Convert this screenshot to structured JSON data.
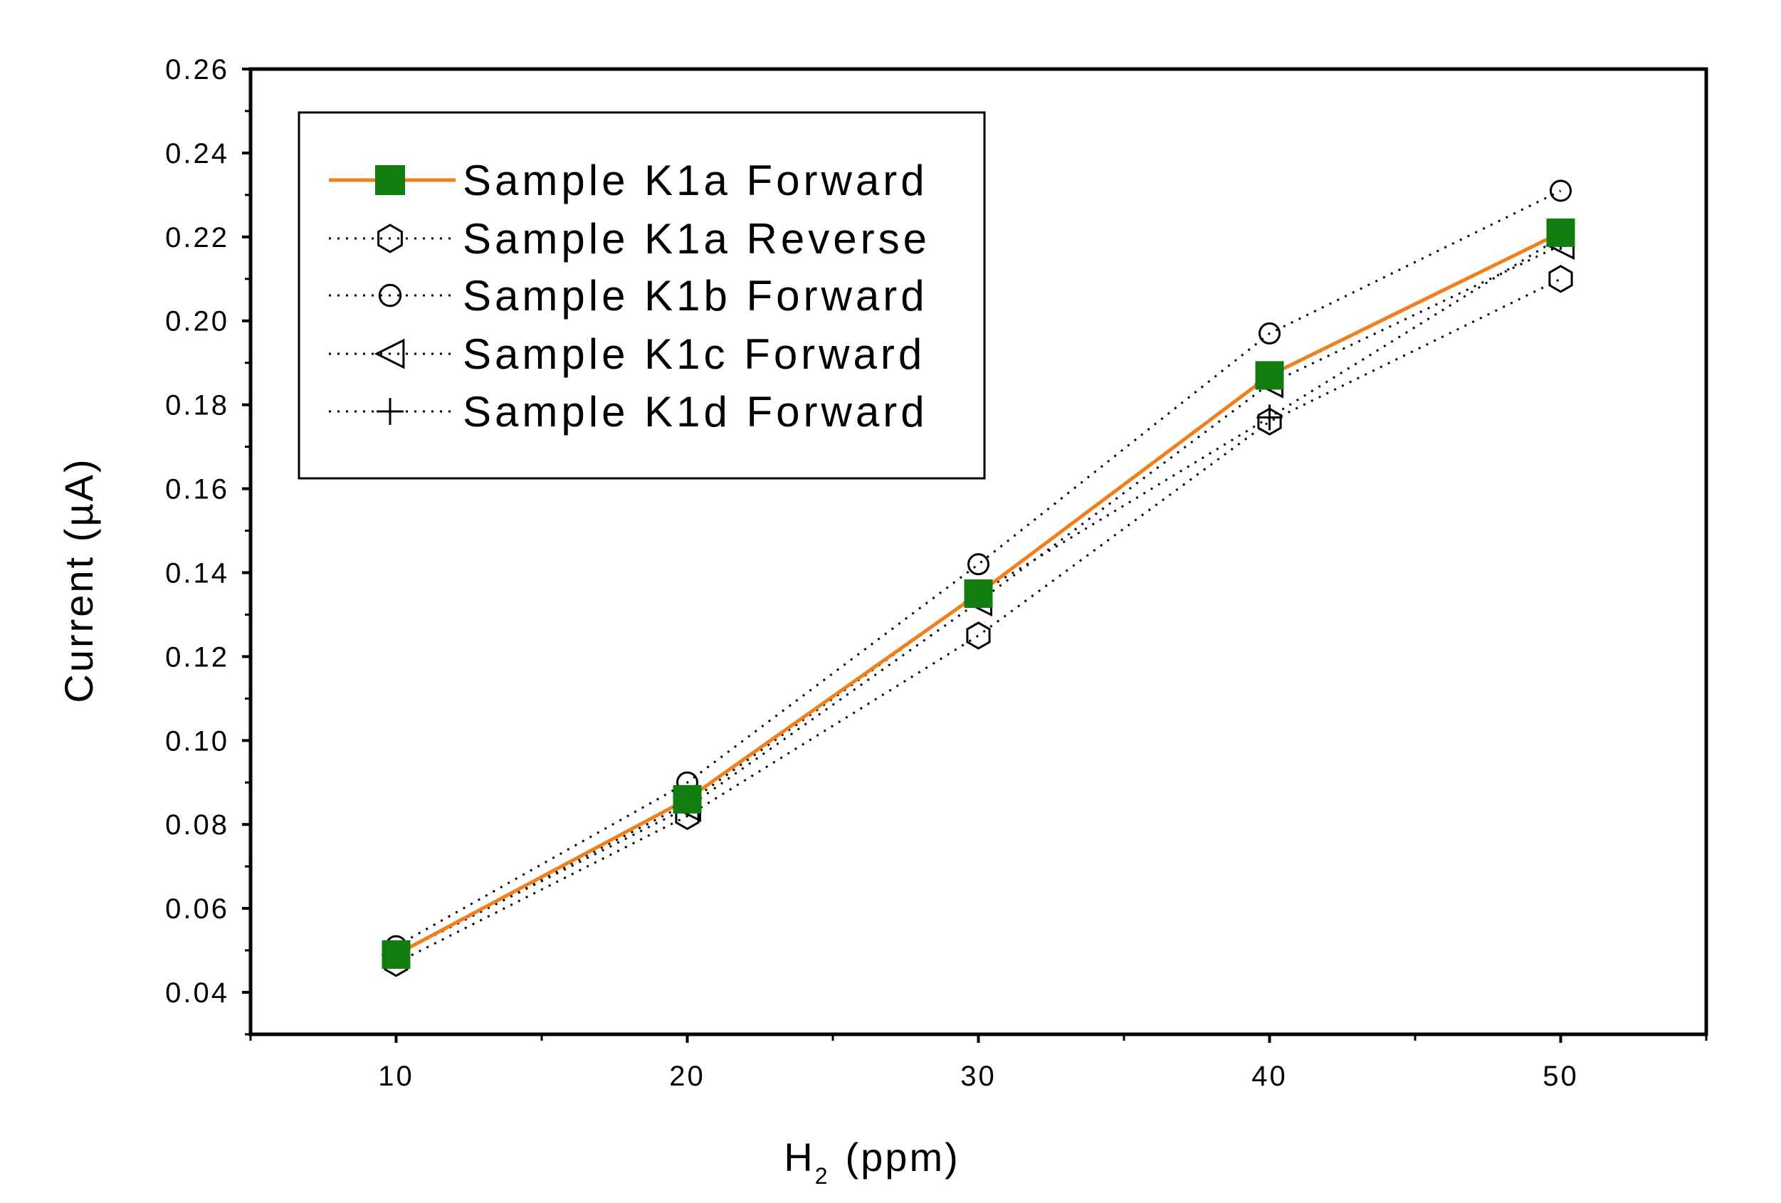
{
  "chart_data": {
    "type": "line",
    "title": "",
    "xlabel": "H",
    "xlabel_subscript": "2",
    "xlabel_suffix": "(ppm)",
    "ylabel": "Current (µA)",
    "xlim": [
      5,
      55
    ],
    "ylim": [
      0.03,
      0.26
    ],
    "x_ticks": [
      10,
      20,
      30,
      40,
      50
    ],
    "x_tick_labels": [
      "10",
      "20",
      "30",
      "40",
      "50"
    ],
    "y_ticks": [
      0.04,
      0.06,
      0.08,
      0.1,
      0.12,
      0.14,
      0.16,
      0.18,
      0.2,
      0.22,
      0.24,
      0.26
    ],
    "y_tick_labels": [
      "0.04",
      "0.06",
      "0.08",
      "0.10",
      "0.12",
      "0.14",
      "0.16",
      "0.18",
      "0.20",
      "0.22",
      "0.24",
      "0.26"
    ],
    "grid": false,
    "legend_position": "top-left",
    "series": [
      {
        "name": "Sample K1a Forward",
        "marker": "filled-square",
        "line_style": "solid",
        "line_color": "#f07f1e",
        "marker_color": "#117d11",
        "x": [
          10,
          20,
          30,
          40,
          50
        ],
        "values": [
          0.049,
          0.086,
          0.135,
          0.187,
          0.221
        ]
      },
      {
        "name": "Sample K1a Reverse",
        "marker": "open-hexagon",
        "line_style": "dotted",
        "line_color": "#000000",
        "marker_color": "#000000",
        "x": [
          10,
          20,
          30,
          40,
          50
        ],
        "values": [
          0.047,
          0.082,
          0.125,
          0.176,
          0.21
        ]
      },
      {
        "name": "Sample K1b Forward",
        "marker": "open-circle",
        "line_style": "dotted",
        "line_color": "#000000",
        "marker_color": "#000000",
        "x": [
          10,
          20,
          30,
          40,
          50
        ],
        "values": [
          0.051,
          0.09,
          0.142,
          0.197,
          0.231
        ]
      },
      {
        "name": "Sample K1c Forward",
        "marker": "open-triangle-left",
        "line_style": "dotted",
        "line_color": "#000000",
        "marker_color": "#000000",
        "x": [
          10,
          20,
          30,
          40,
          50
        ],
        "values": [
          0.049,
          0.084,
          0.133,
          0.185,
          0.218
        ]
      },
      {
        "name": "Sample K1d Forward",
        "marker": "plus",
        "line_style": "dotted",
        "line_color": "#000000",
        "marker_color": "#000000",
        "x": [
          10,
          20,
          30,
          40,
          50
        ],
        "values": [
          0.049,
          0.085,
          0.135,
          0.177,
          0.22
        ]
      }
    ]
  }
}
